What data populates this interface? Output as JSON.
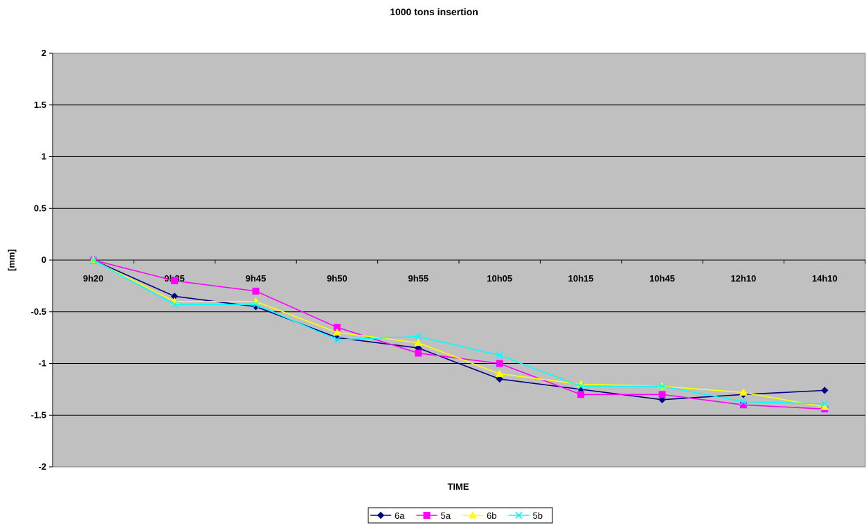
{
  "chart_data": {
    "type": "line",
    "title": "1000 tons insertion",
    "xlabel": "TIME",
    "ylabel": "[mm]",
    "categories": [
      "9h20",
      "9h35",
      "9h45",
      "9h50",
      "9h55",
      "10h05",
      "10h15",
      "10h45",
      "12h10",
      "14h10"
    ],
    "ylim": [
      -2,
      2
    ],
    "yticks": [
      2,
      1.5,
      1,
      0.5,
      0,
      -0.5,
      -1,
      -1.5,
      -2
    ],
    "grid": true,
    "legend_position": "bottom",
    "plot_background": "#c0c0c0",
    "series": [
      {
        "name": "6a",
        "color": "#000080",
        "marker": "diamond",
        "values": [
          0,
          -0.35,
          -0.45,
          -0.75,
          -0.85,
          -1.15,
          -1.25,
          -1.35,
          -1.3,
          -1.26
        ]
      },
      {
        "name": "5a",
        "color": "#ff00ff",
        "marker": "square",
        "values": [
          0,
          -0.2,
          -0.3,
          -0.65,
          -0.9,
          -1.0,
          -1.3,
          -1.3,
          -1.4,
          -1.44
        ]
      },
      {
        "name": "6b",
        "color": "#ffff00",
        "marker": "triangle",
        "values": [
          0,
          -0.4,
          -0.4,
          -0.7,
          -0.8,
          -1.1,
          -1.2,
          -1.22,
          -1.28,
          -1.42
        ]
      },
      {
        "name": "5b",
        "color": "#00ffff",
        "marker": "x",
        "values": [
          0,
          -0.43,
          -0.43,
          -0.77,
          -0.74,
          -0.92,
          -1.22,
          -1.22,
          -1.37,
          -1.39
        ]
      }
    ]
  }
}
